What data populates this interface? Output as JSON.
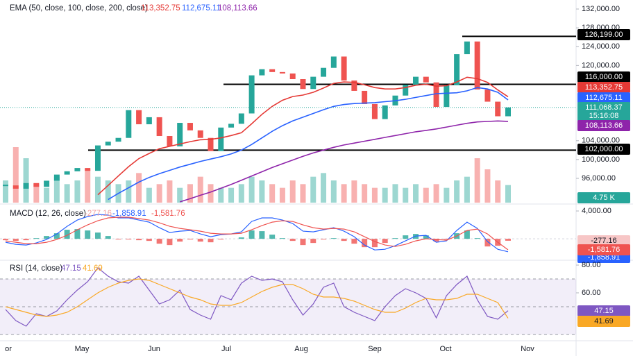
{
  "chart_data": [
    {
      "type": "candlestick",
      "title": "EMA (50, close, 100, close, 200, close)",
      "x_labels": [
        "or",
        "May",
        "Jun",
        "Jul",
        "Aug",
        "Sep",
        "Oct",
        "Nov"
      ],
      "ylim": [
        90690,
        133920
      ],
      "yticks": [
        {
          "value": 132000,
          "label": "132,000.00"
        },
        {
          "value": 128000,
          "label": "128,000.00"
        },
        {
          "value": 124000,
          "label": "124,000.00"
        },
        {
          "value": 120000,
          "label": "120,000.00"
        },
        {
          "value": 104000,
          "label": "104,000.00"
        },
        {
          "value": 100000,
          "label": "100,000.00"
        },
        {
          "value": 96000,
          "label": "96,000.00"
        }
      ],
      "close": [
        94500,
        93800,
        95000,
        94200,
        95500,
        96800,
        97500,
        98200,
        97600,
        103000,
        103800,
        104600,
        110500,
        107500,
        109000,
        105000,
        102800,
        107800,
        106200,
        104600,
        101800,
        106800,
        107600,
        109800,
        117900,
        119200,
        118600,
        118300,
        117100,
        115000,
        117600,
        119500,
        121900,
        116800,
        114600,
        111800,
        108600,
        111500,
        113600,
        115900,
        117600,
        116400,
        111200,
        115800,
        122400,
        125100,
        114900,
        112300,
        109200,
        111068.37
      ],
      "close_label": "111,068.37",
      "countdown": "15:16:08",
      "up_color": "#26a69a",
      "down_color": "#ef5350",
      "series": [
        {
          "color": "#e53935",
          "value_label": "113,352.75",
          "values": [
            null,
            null,
            null,
            null,
            null,
            null,
            null,
            null,
            null,
            92500,
            94500,
            96500,
            98500,
            100200,
            101300,
            102300,
            102800,
            103300,
            103800,
            104200,
            104300,
            104600,
            105100,
            105700,
            107600,
            109600,
            111300,
            112600,
            113400,
            113700,
            114300,
            115200,
            116200,
            116500,
            116400,
            115900,
            115300,
            115000,
            115000,
            115300,
            115800,
            116000,
            115600,
            115700,
            116500,
            117500,
            117200,
            116400,
            114800,
            113352.75
          ]
        },
        {
          "color": "#2962ff",
          "value_label": "112,675.11",
          "values": [
            null,
            null,
            null,
            null,
            null,
            null,
            null,
            null,
            null,
            null,
            91500,
            92800,
            94000,
            95200,
            96200,
            97000,
            97700,
            98400,
            99000,
            99600,
            100100,
            100600,
            101200,
            102000,
            103200,
            104600,
            106000,
            107200,
            108200,
            109000,
            109800,
            110600,
            111300,
            111700,
            111900,
            112000,
            112100,
            112300,
            112500,
            112800,
            113200,
            113600,
            114000,
            114100,
            114200,
            114600,
            115300,
            115000,
            114300,
            112675.11
          ]
        },
        {
          "color": "#8e24aa",
          "value_label": "108,113.66",
          "values": [
            null,
            null,
            null,
            null,
            null,
            null,
            null,
            null,
            null,
            null,
            null,
            null,
            null,
            null,
            null,
            null,
            null,
            91000,
            91700,
            92400,
            93100,
            93900,
            94700,
            95600,
            96500,
            97400,
            98300,
            99100,
            99900,
            100700,
            101400,
            102000,
            102600,
            103100,
            103500,
            103900,
            104300,
            104700,
            105100,
            105500,
            105900,
            106200,
            106500,
            106900,
            107300,
            107700,
            108000,
            108100,
            108200,
            108113.66
          ]
        }
      ],
      "levels": [
        {
          "value": 126199,
          "label": "126,199.00"
        },
        {
          "value": 116000,
          "label": "116,000.00"
        },
        {
          "value": 102000,
          "label": "102,000.00"
        }
      ],
      "volume": {
        "label": "4.75 K",
        "values": [
          6,
          15,
          12,
          5,
          4,
          7,
          5,
          6,
          9,
          7,
          6,
          5,
          6,
          8,
          4,
          5,
          6,
          4,
          5,
          7,
          5,
          4,
          4,
          5,
          7,
          6,
          5,
          4,
          6,
          5,
          7,
          8,
          6,
          5,
          6,
          5,
          4,
          4,
          5,
          4,
          5,
          4,
          5,
          4,
          6,
          7,
          12,
          9,
          6,
          4.75
        ]
      }
    },
    {
      "type": "macd",
      "title": "MACD (12, 26, close)",
      "ylim": [
        -2980,
        4800
      ],
      "yticks": [
        {
          "value": 4000,
          "label": "4,000.00"
        }
      ],
      "histogram": {
        "value_label": "-277.16",
        "values": [
          -200,
          -300,
          -200,
          100,
          400,
          800,
          1300,
          1400,
          1200,
          900,
          400,
          -100,
          -100,
          -200,
          -300,
          -700,
          -900,
          -400,
          -100,
          -400,
          -500,
          -100,
          0,
          200,
          1200,
          1100,
          600,
          100,
          -300,
          -900,
          -600,
          -100,
          100,
          -300,
          -700,
          -1200,
          -1200,
          -600,
          100,
          500,
          700,
          500,
          -400,
          -100,
          800,
          1200,
          100,
          -1100,
          -1000,
          -277.16
        ]
      },
      "series": [
        {
          "color": "#2962ff",
          "value_label": "-1,858.91",
          "values": [
            -500,
            -800,
            -900,
            -600,
            -100,
            700,
            1800,
            2700,
            3200,
            3500,
            3400,
            3000,
            3000,
            2700,
            2400,
            1600,
            900,
            1100,
            1200,
            700,
            300,
            600,
            700,
            1000,
            2500,
            3000,
            3000,
            2700,
            2200,
            1100,
            1000,
            1300,
            1600,
            1100,
            300,
            -900,
            -1600,
            -1500,
            -1000,
            -300,
            400,
            500,
            -500,
            -300,
            1200,
            2400,
            1500,
            -400,
            -1500,
            -1858.91
          ]
        },
        {
          "color": "#ef5350",
          "value_label": "-1,581.76",
          "values": [
            -300,
            -500,
            -700,
            -700,
            -500,
            -100,
            500,
            1300,
            2000,
            2600,
            3000,
            3100,
            3100,
            2900,
            2700,
            2300,
            1800,
            1500,
            1300,
            1100,
            800,
            700,
            700,
            800,
            1300,
            1900,
            2400,
            2600,
            2500,
            2000,
            1600,
            1400,
            1500,
            1400,
            1000,
            300,
            -400,
            -900,
            -1100,
            -800,
            -300,
            0,
            -100,
            -200,
            400,
            1200,
            1400,
            700,
            -500,
            -1581.76
          ]
        }
      ]
    },
    {
      "type": "rsi",
      "title": "RSI (14, close)",
      "ylim": [
        26,
        83
      ],
      "yticks": [
        {
          "value": 80,
          "label": "80.00"
        },
        {
          "value": 60,
          "label": "60.00"
        }
      ],
      "bands": [
        70,
        50,
        30
      ],
      "series": [
        {
          "color": "#7e57c2",
          "value_label": "47.15",
          "values": [
            48,
            40,
            36,
            45,
            43,
            47,
            55,
            62,
            68,
            78,
            72,
            68,
            67,
            72,
            62,
            52,
            55,
            62,
            48,
            44,
            41,
            58,
            55,
            67,
            72,
            69,
            70,
            68,
            55,
            44,
            52,
            64,
            67,
            50,
            46,
            43,
            40,
            50,
            58,
            63,
            60,
            56,
            42,
            58,
            66,
            72,
            55,
            43,
            41,
            47.15
          ]
        },
        {
          "color": "#f9a825",
          "value_label": "41.69",
          "values": [
            50,
            48,
            46,
            44,
            43,
            44,
            46,
            50,
            55,
            60,
            64,
            67,
            69,
            70,
            69,
            66,
            63,
            60,
            57,
            55,
            52,
            51,
            51,
            53,
            57,
            61,
            64,
            66,
            66,
            63,
            59,
            57,
            57,
            56,
            54,
            51,
            48,
            46,
            46,
            49,
            53,
            56,
            55,
            55,
            56,
            59,
            59,
            56,
            53,
            41.69
          ]
        }
      ]
    }
  ]
}
